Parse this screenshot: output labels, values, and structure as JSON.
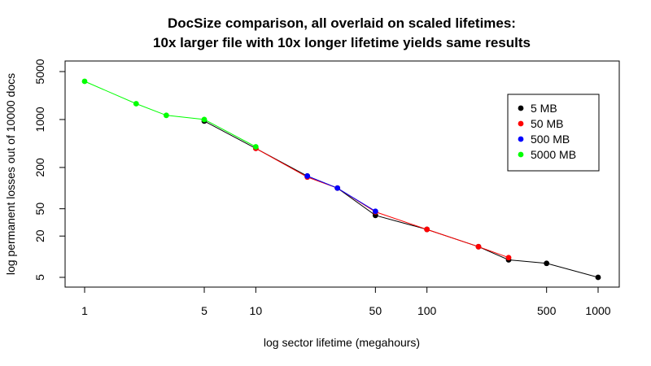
{
  "chart_data": {
    "type": "line",
    "title": "DocSize comparison, all overlaid on scaled lifetimes:",
    "subtitle": "10x larger file with 10x longer lifetime yields same results",
    "xlabel": "log sector lifetime (megahours)",
    "ylabel": "log permanent losses out of 10000 docs",
    "x_scale": "log",
    "y_scale": "log",
    "xlim": [
      1,
      1000
    ],
    "ylim": [
      5,
      5000
    ],
    "x_ticks": [
      1,
      5,
      10,
      50,
      100,
      500,
      1000
    ],
    "y_ticks": [
      5,
      20,
      50,
      200,
      1000,
      5000
    ],
    "grid": false,
    "legend_position": "top-right",
    "series": [
      {
        "name": "5 MB",
        "color": "#000000",
        "x": [
          5,
          10,
          20,
          30,
          50,
          100,
          200,
          300,
          500,
          1000
        ],
        "y": [
          950,
          380,
          150,
          100,
          40,
          25,
          14,
          9,
          8,
          5
        ]
      },
      {
        "name": "50 MB",
        "color": "#ff0000",
        "x": [
          10,
          20,
          30,
          50,
          100,
          200,
          300
        ],
        "y": [
          380,
          145,
          100,
          45,
          25,
          14,
          9.7
        ]
      },
      {
        "name": "500 MB",
        "color": "#0000ff",
        "x": [
          20,
          30,
          50
        ],
        "y": [
          150,
          100,
          46
        ]
      },
      {
        "name": "5000 MB",
        "color": "#00ff00",
        "x": [
          1,
          2,
          3,
          5,
          10
        ],
        "y": [
          3600,
          1700,
          1150,
          1000,
          400
        ]
      }
    ]
  }
}
